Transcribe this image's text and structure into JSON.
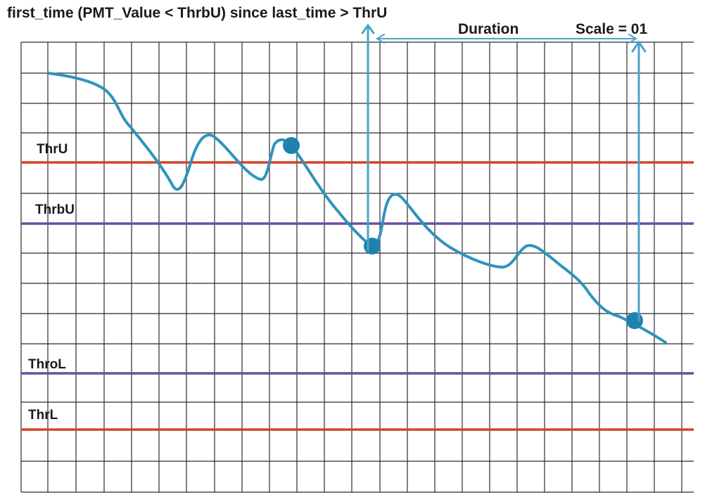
{
  "title": "first_time (PMT_Value < ThrbU) since last_time > ThrU",
  "duration_label": "Duration",
  "scale_label": "Scale = 01",
  "thresholds": [
    {
      "label": "ThrU",
      "color": "#d2442a"
    },
    {
      "label": "ThrbU",
      "color": "#6a4f9f"
    },
    {
      "label": "ThroL",
      "color": "#6a4f9f"
    },
    {
      "label": "ThrL",
      "color": "#d2442a"
    }
  ],
  "colors": {
    "grid": "#2b2b2b",
    "curve": "#2f93bd",
    "marker": "#1f82ad",
    "arrow": "#4aa3c9"
  }
}
